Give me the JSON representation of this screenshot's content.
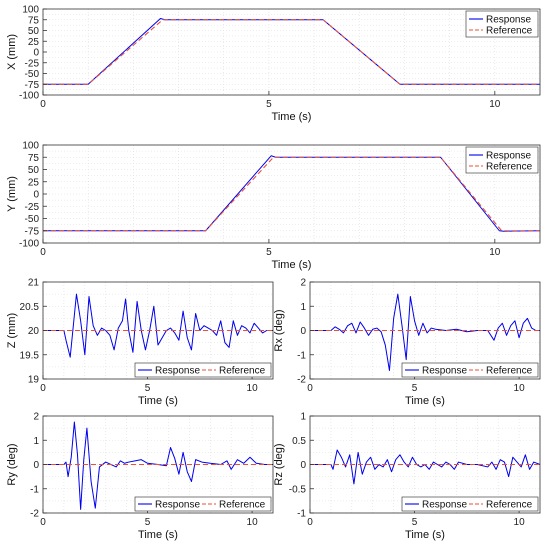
{
  "colors": {
    "response": "#0000ee",
    "reference": "#e8503a",
    "grid": "#dcdcdc",
    "axis": "#333333"
  },
  "chart_data": [
    {
      "id": "x",
      "type": "line",
      "xlabel": "Time (s)",
      "ylabel": "X (mm)",
      "xlim": [
        0,
        11
      ],
      "ylim": [
        -100,
        100
      ],
      "xticks": [
        0,
        5,
        10
      ],
      "yticks": [
        -100,
        -75,
        -50,
        -25,
        0,
        25,
        50,
        75,
        100
      ],
      "legend": {
        "position": "top-right",
        "entries": [
          "Response",
          "Reference"
        ]
      },
      "series": [
        {
          "name": "Response",
          "style": "solid",
          "x": [
            0,
            1.0,
            2.6,
            2.7,
            6.2,
            7.9,
            11
          ],
          "y": [
            -75,
            -75,
            78,
            75,
            75,
            -75,
            -75
          ]
        },
        {
          "name": "Reference",
          "style": "dashed",
          "x": [
            0,
            1.0,
            2.65,
            6.2,
            7.9,
            11
          ],
          "y": [
            -75,
            -75,
            75,
            75,
            -75,
            -75
          ]
        }
      ]
    },
    {
      "id": "y",
      "type": "line",
      "xlabel": "Time (s)",
      "ylabel": "Y (mm)",
      "xlim": [
        0,
        11
      ],
      "ylim": [
        -100,
        100
      ],
      "xticks": [
        0,
        5,
        10
      ],
      "yticks": [
        -100,
        -75,
        -50,
        -25,
        0,
        25,
        50,
        75,
        100
      ],
      "legend": {
        "position": "top-right",
        "entries": [
          "Response",
          "Reference"
        ]
      },
      "series": [
        {
          "name": "Response",
          "style": "solid",
          "x": [
            0,
            3.6,
            5.05,
            5.15,
            8.8,
            10.1,
            10.2,
            11
          ],
          "y": [
            -75,
            -75,
            78,
            75,
            75,
            -75,
            -76,
            -75
          ]
        },
        {
          "name": "Reference",
          "style": "dashed",
          "x": [
            0,
            3.6,
            5.1,
            8.8,
            10.15,
            11
          ],
          "y": [
            -75,
            -75,
            75,
            75,
            -75,
            -75
          ]
        }
      ]
    },
    {
      "id": "z",
      "type": "line",
      "xlabel": "Time (s)",
      "ylabel": "Z (mm)",
      "xlim": [
        0,
        11
      ],
      "ylim": [
        19,
        21
      ],
      "xticks": [
        0,
        5,
        10
      ],
      "yticks": [
        19,
        19.5,
        20,
        20.5,
        21
      ],
      "legend": {
        "position": "bottom-right",
        "entries": [
          "Response",
          "Reference"
        ]
      },
      "series": [
        {
          "name": "Response",
          "style": "solid",
          "x": [
            0,
            1.0,
            1.1,
            1.3,
            1.45,
            1.6,
            1.8,
            2.0,
            2.2,
            2.4,
            2.6,
            2.8,
            3.0,
            3.2,
            3.4,
            3.6,
            3.8,
            3.95,
            4.1,
            4.3,
            4.5,
            4.7,
            4.9,
            5.1,
            5.3,
            5.5,
            5.7,
            5.9,
            6.1,
            6.3,
            6.5,
            6.7,
            6.9,
            7.1,
            7.3,
            7.5,
            7.7,
            7.9,
            8.1,
            8.3,
            8.5,
            8.7,
            8.9,
            9.1,
            9.3,
            9.5,
            9.7,
            9.9,
            10.1,
            10.3,
            10.5,
            10.7,
            11
          ],
          "y": [
            20,
            20,
            19.8,
            19.45,
            20.1,
            20.75,
            20.2,
            19.5,
            20.7,
            20.1,
            19.9,
            20.05,
            20,
            19.9,
            19.6,
            20.05,
            20.2,
            20.65,
            20.0,
            19.55,
            20.6,
            20.0,
            19.6,
            20.0,
            20.5,
            19.7,
            19.85,
            20.0,
            20.05,
            19.95,
            19.8,
            20.4,
            19.85,
            19.6,
            20.35,
            20.0,
            20.1,
            20.05,
            20.0,
            19.9,
            20.2,
            19.75,
            19.65,
            20.2,
            19.9,
            20.1,
            20.05,
            19.95,
            20.15,
            20.05,
            19.95,
            20.0,
            20
          ]
        },
        {
          "name": "Reference",
          "style": "dashed",
          "x": [
            0,
            11
          ],
          "y": [
            20,
            20
          ]
        }
      ]
    },
    {
      "id": "rx",
      "type": "line",
      "xlabel": "Time (s)",
      "ylabel": "Rx (deg)",
      "xlim": [
        0,
        11
      ],
      "ylim": [
        -2,
        2
      ],
      "xticks": [
        0,
        5,
        10
      ],
      "yticks": [
        -2,
        -1,
        0,
        1,
        2
      ],
      "legend": {
        "position": "bottom-right",
        "entries": [
          "Response",
          "Reference"
        ]
      },
      "series": [
        {
          "name": "Response",
          "style": "solid",
          "x": [
            0,
            1.0,
            1.2,
            1.4,
            1.6,
            1.8,
            2.0,
            2.2,
            2.4,
            2.6,
            2.8,
            3.0,
            3.2,
            3.4,
            3.6,
            3.8,
            4.0,
            4.2,
            4.4,
            4.6,
            4.8,
            5.0,
            5.2,
            5.4,
            5.6,
            5.8,
            6.0,
            6.5,
            7.0,
            7.5,
            8.0,
            8.5,
            8.8,
            9.0,
            9.2,
            9.4,
            9.6,
            9.8,
            10.0,
            10.2,
            10.4,
            10.6,
            10.8,
            11
          ],
          "y": [
            0,
            0,
            0.15,
            0.05,
            -0.1,
            0.2,
            0.3,
            -0.1,
            0.35,
            0.1,
            -0.2,
            0.05,
            0.1,
            -0.05,
            -0.6,
            -1.65,
            0.5,
            1.5,
            0.2,
            -1.2,
            1.4,
            0.4,
            -0.2,
            0.3,
            -0.1,
            0.1,
            0.05,
            0,
            0.05,
            -0.05,
            0,
            0,
            -0.4,
            0.1,
            0.3,
            -0.2,
            0.2,
            0.4,
            -0.3,
            0.3,
            0.5,
            0.1,
            0.0,
            0
          ]
        },
        {
          "name": "Reference",
          "style": "dashed",
          "x": [
            0,
            11
          ],
          "y": [
            0,
            0
          ]
        }
      ]
    },
    {
      "id": "ry",
      "type": "line",
      "xlabel": "Time (s)",
      "ylabel": "Ry (deg)",
      "xlim": [
        0,
        11
      ],
      "ylim": [
        -2,
        2
      ],
      "xticks": [
        0,
        5,
        10
      ],
      "yticks": [
        -2,
        -1,
        0,
        1,
        2
      ],
      "legend": {
        "position": "bottom-right",
        "entries": [
          "Response",
          "Reference"
        ]
      },
      "series": [
        {
          "name": "Response",
          "style": "solid",
          "x": [
            0,
            1.0,
            1.1,
            1.2,
            1.35,
            1.5,
            1.65,
            1.8,
            1.95,
            2.1,
            2.3,
            2.5,
            2.7,
            3.0,
            3.5,
            3.7,
            3.9,
            4.1,
            4.4,
            4.7,
            5.0,
            5.5,
            5.9,
            6.1,
            6.3,
            6.5,
            6.7,
            6.9,
            7.1,
            7.3,
            7.6,
            8.0,
            8.5,
            8.8,
            9.0,
            9.3,
            9.6,
            9.9,
            10.2,
            10.6,
            11
          ],
          "y": [
            0,
            0,
            0.1,
            -0.5,
            0.3,
            1.75,
            0.4,
            -1.85,
            0.2,
            1.5,
            -0.7,
            -1.8,
            -0.1,
            0.1,
            -0.1,
            0.15,
            0.05,
            0.1,
            0.15,
            0.2,
            0.05,
            0.0,
            -0.05,
            0.7,
            0.25,
            -0.4,
            0.5,
            -0.3,
            -0.7,
            0.2,
            0.1,
            0.05,
            0.0,
            0.15,
            -0.2,
            0.2,
            0.05,
            0.3,
            0.05,
            0.0,
            0
          ]
        },
        {
          "name": "Reference",
          "style": "dashed",
          "x": [
            0,
            11
          ],
          "y": [
            0,
            0
          ]
        }
      ]
    },
    {
      "id": "rz",
      "type": "line",
      "xlabel": "Time (s)",
      "ylabel": "Rz (deg)",
      "xlim": [
        0,
        11
      ],
      "ylim": [
        -1,
        1
      ],
      "xticks": [
        0,
        5,
        10
      ],
      "yticks": [
        -1,
        -0.5,
        0,
        0.5,
        1
      ],
      "legend": {
        "position": "bottom-right",
        "entries": [
          "Response",
          "Reference"
        ]
      },
      "series": [
        {
          "name": "Response",
          "style": "solid",
          "x": [
            0,
            1.0,
            1.1,
            1.3,
            1.5,
            1.7,
            1.9,
            2.1,
            2.3,
            2.5,
            2.7,
            2.9,
            3.1,
            3.3,
            3.5,
            3.7,
            3.9,
            4.1,
            4.3,
            4.5,
            4.7,
            4.9,
            5.1,
            5.3,
            5.5,
            5.7,
            5.9,
            6.1,
            6.3,
            6.5,
            6.7,
            6.9,
            7.1,
            7.5,
            8.0,
            8.5,
            8.7,
            8.9,
            9.1,
            9.3,
            9.5,
            9.7,
            9.9,
            10.1,
            10.3,
            10.5,
            10.7,
            11
          ],
          "y": [
            0,
            0,
            -0.1,
            0.3,
            0.15,
            -0.05,
            0.2,
            -0.4,
            0.25,
            -0.2,
            0.05,
            0.15,
            -0.1,
            0.0,
            -0.05,
            0.1,
            -0.15,
            0.1,
            0.2,
            0.05,
            -0.05,
            0.15,
            0.0,
            -0.05,
            0.0,
            -0.1,
            0.05,
            0.0,
            -0.05,
            0.05,
            0.0,
            -0.1,
            0.05,
            0.0,
            0.0,
            -0.05,
            0.05,
            -0.1,
            0.1,
            0.05,
            -0.25,
            0.15,
            0.05,
            -0.05,
            0.2,
            -0.1,
            0.05,
            0
          ]
        },
        {
          "name": "Reference",
          "style": "dashed",
          "x": [
            0,
            11
          ],
          "y": [
            0,
            0
          ]
        }
      ]
    }
  ]
}
